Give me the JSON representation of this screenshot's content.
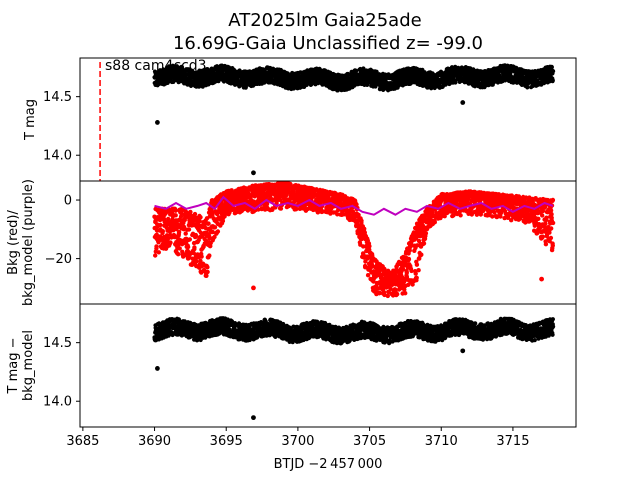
{
  "chart_data": {
    "type": "scatter",
    "title_line1": "AT2025lm  Gaia25ade",
    "title_line2": "16.69G-Gaia Unclassified z= -99.0",
    "xlabel": "BTJD −2 457 000",
    "xlim": [
      3684.8,
      3719.4
    ],
    "xticks": [
      3685,
      3690,
      3695,
      3700,
      3705,
      3710,
      3715
    ],
    "colors": {
      "data": "#000000",
      "bkg": "#ff0000",
      "bkg_model": "#bf00bf",
      "sector_line": "#ff0000"
    },
    "sector_marker": {
      "x": 3686.2,
      "label": "s88 cam4ccd3"
    },
    "panels": [
      {
        "id": "tmag",
        "ylabel": "T mag",
        "ylim": [
          14.83,
          13.78
        ],
        "yinvert": true,
        "yticks": [
          14.0,
          14.5
        ],
        "ytick_labels": [
          "14.0",
          "14.5"
        ],
        "series": [
          {
            "kind": "band",
            "color": "black",
            "x_range": [
              3690.0,
              3717.8
            ],
            "center": 14.66,
            "halfwidth": 0.07,
            "wave_amp": 0.025
          }
        ],
        "outliers": [
          {
            "x": 3690.2,
            "y": 14.28
          },
          {
            "x": 3696.9,
            "y": 13.85
          },
          {
            "x": 3711.5,
            "y": 14.45
          }
        ]
      },
      {
        "id": "bkg",
        "ylabel": "Bkg (red)/\nbkg_model (purple)",
        "ylim": [
          -35.5,
          6.5
        ],
        "yinvert": false,
        "yticks": [
          0,
          -20
        ],
        "ytick_labels": [
          "0",
          "−20"
        ],
        "bkg_profile": [
          [
            3690.0,
            -3,
            -20
          ],
          [
            3691.0,
            -3,
            -16
          ],
          [
            3692.0,
            -3,
            -20
          ],
          [
            3693.0,
            -5,
            -24
          ],
          [
            3693.6,
            -7,
            -28
          ],
          [
            3694.0,
            0,
            -15
          ],
          [
            3695.0,
            3,
            -5
          ],
          [
            3697.0,
            5,
            -4
          ],
          [
            3699.0,
            6,
            -3
          ],
          [
            3701.0,
            4,
            -4
          ],
          [
            3703.0,
            2,
            -5
          ],
          [
            3704.0,
            0,
            -8
          ],
          [
            3704.5,
            -8,
            -20
          ],
          [
            3705.3,
            -20,
            -32
          ],
          [
            3706.5,
            -25,
            -33
          ],
          [
            3707.5,
            -18,
            -32
          ],
          [
            3708.3,
            -8,
            -28
          ],
          [
            3709.0,
            -3,
            -10
          ],
          [
            3710.0,
            2,
            -6
          ],
          [
            3712.0,
            3,
            -5
          ],
          [
            3714.0,
            2,
            -6
          ],
          [
            3716.0,
            1,
            -8
          ],
          [
            3717.8,
            0,
            -18
          ]
        ],
        "bkg_model": [
          [
            3690.0,
            -2
          ],
          [
            3690.8,
            -3
          ],
          [
            3691.5,
            -1
          ],
          [
            3692.2,
            -3
          ],
          [
            3693.0,
            -2
          ],
          [
            3693.6,
            -1
          ],
          [
            3694.2,
            -3
          ],
          [
            3694.8,
            1
          ],
          [
            3695.5,
            -2
          ],
          [
            3696.3,
            -1
          ],
          [
            3697.0,
            -3
          ],
          [
            3697.8,
            0
          ],
          [
            3698.5,
            -2
          ],
          [
            3699.3,
            -1
          ],
          [
            3700.0,
            -2
          ],
          [
            3700.8,
            0
          ],
          [
            3701.5,
            -2
          ],
          [
            3702.3,
            -1
          ],
          [
            3703.0,
            -3
          ],
          [
            3703.8,
            -2
          ],
          [
            3704.5,
            -4
          ],
          [
            3705.3,
            -5
          ],
          [
            3706.0,
            -3
          ],
          [
            3706.8,
            -5
          ],
          [
            3707.5,
            -3
          ],
          [
            3708.3,
            -4
          ],
          [
            3709.0,
            -2
          ],
          [
            3709.8,
            -3
          ],
          [
            3710.5,
            -1
          ],
          [
            3711.3,
            -3
          ],
          [
            3712.0,
            -2
          ],
          [
            3712.8,
            -1
          ],
          [
            3713.5,
            -3
          ],
          [
            3714.3,
            -2
          ],
          [
            3715.0,
            -4
          ],
          [
            3715.8,
            -2
          ],
          [
            3716.5,
            -3
          ],
          [
            3717.2,
            -1
          ],
          [
            3717.8,
            -2
          ]
        ],
        "bkg_outliers": [
          {
            "x": 3696.9,
            "y": -30
          },
          {
            "x": 3717.0,
            "y": -27
          }
        ]
      },
      {
        "id": "tmag_model",
        "ylabel": "T mag −\nbkg_model",
        "ylim": [
          14.83,
          13.78
        ],
        "yinvert": true,
        "yticks": [
          14.0,
          14.5
        ],
        "ytick_labels": [
          "14.0",
          "14.5"
        ],
        "series": [
          {
            "kind": "band",
            "color": "black",
            "x_range": [
              3690.0,
              3717.8
            ],
            "center": 14.6,
            "halfwidth": 0.07,
            "wave_amp": 0.025
          }
        ],
        "outliers": [
          {
            "x": 3690.2,
            "y": 14.28
          },
          {
            "x": 3696.9,
            "y": 13.86
          },
          {
            "x": 3711.5,
            "y": 14.43
          }
        ]
      }
    ]
  }
}
